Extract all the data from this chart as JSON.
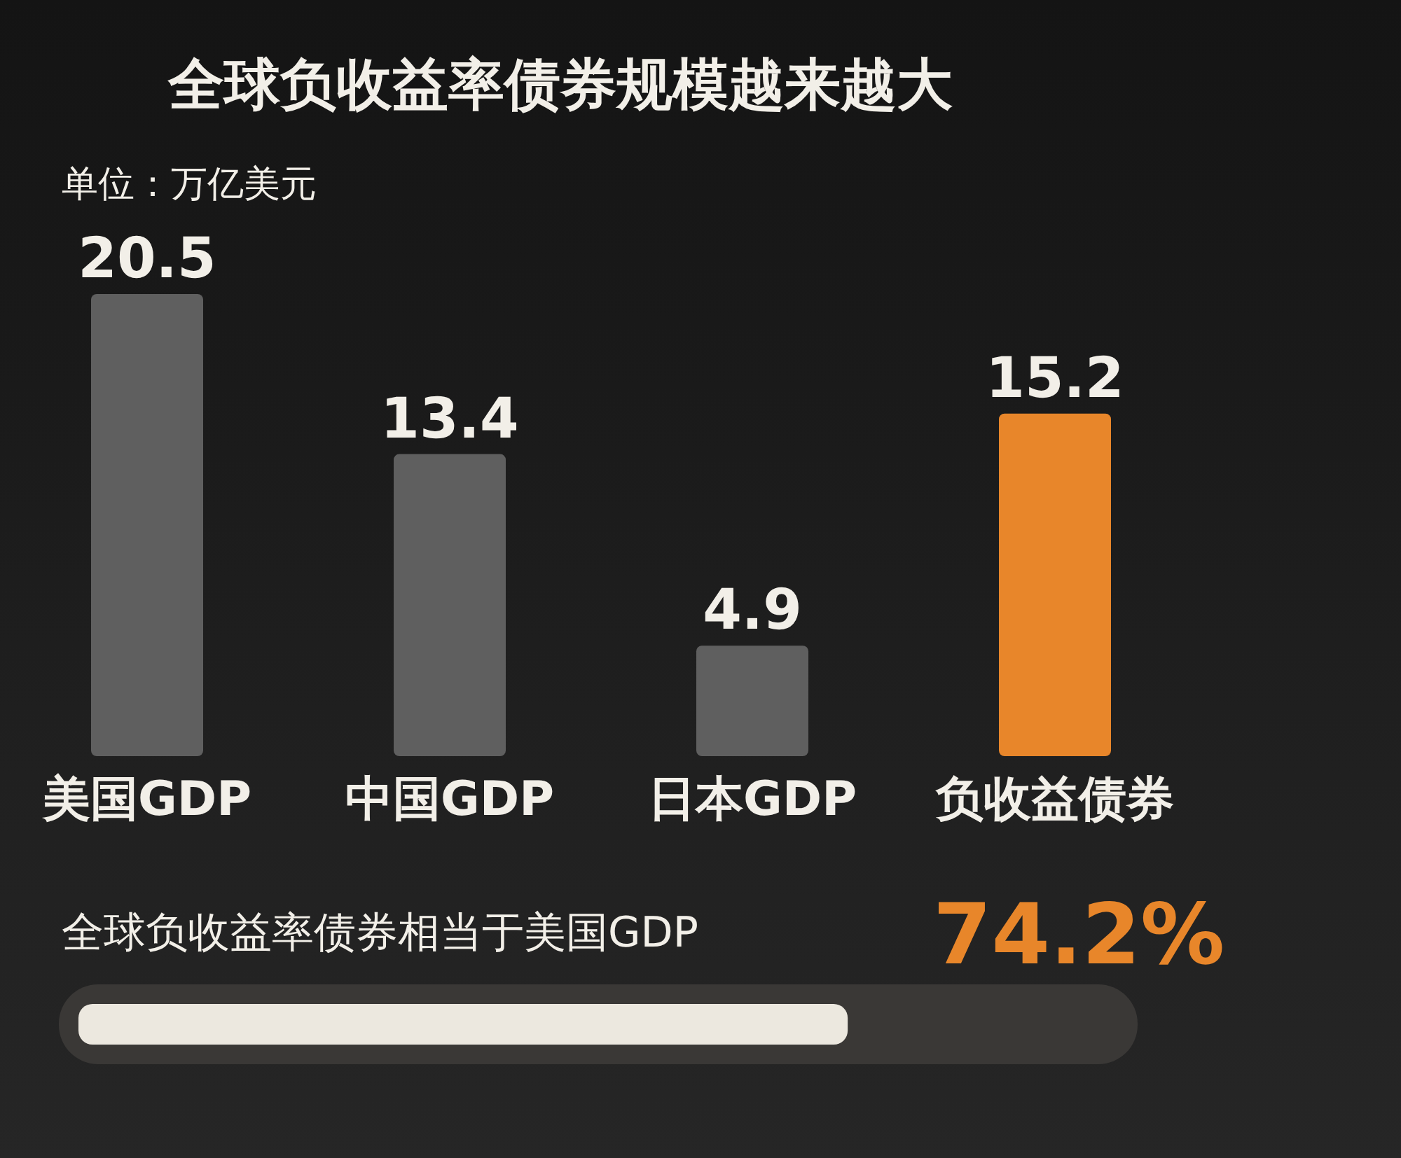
{
  "chart_data": [
    {
      "type": "bar",
      "title": "全球负收益率债券规模越来越大",
      "subtitle": "单位：万亿美元",
      "categories": [
        "美国GDP",
        "中国GDP",
        "日本GDP",
        "负收益债券"
      ],
      "values": [
        20.5,
        13.4,
        4.9,
        15.2
      ],
      "colors": [
        "#5f5f5f",
        "#5f5f5f",
        "#5f5f5f",
        "#e8862a"
      ],
      "data_labels": true
    },
    {
      "type": "other",
      "title": "全球负收益率债券相当于美国GDP",
      "values": [
        74.2
      ],
      "value_labels": [
        "74.2%"
      ],
      "color": "#ece8df"
    }
  ]
}
